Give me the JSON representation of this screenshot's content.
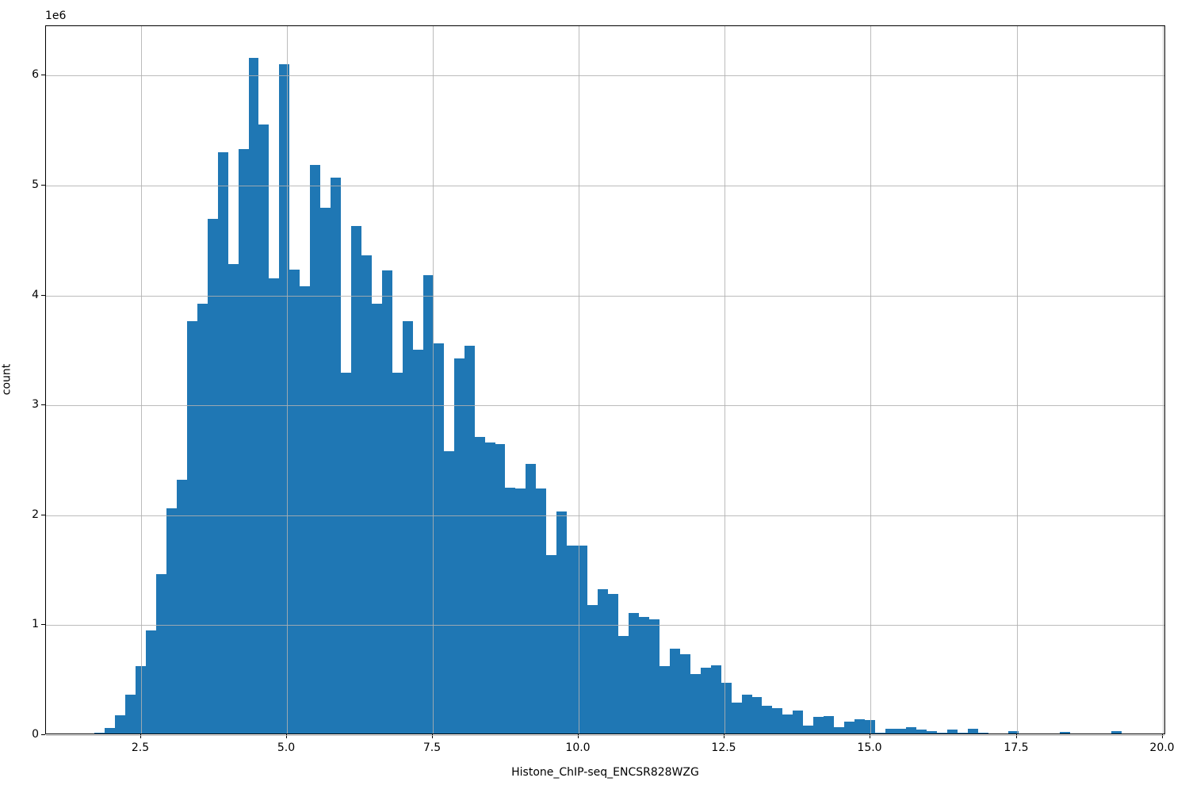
{
  "chart_data": {
    "type": "bar",
    "subtype": "histogram",
    "title": "",
    "xlabel": "Histone_ChIP-seq_ENCSR828WZG",
    "ylabel": "count",
    "y_offset_text": "1e6",
    "grid": true,
    "legend_position": "none",
    "bar_color": "#1f77b4",
    "grid_color": "#b0b0b0",
    "spine_color": "#000000",
    "text_color": "#000000",
    "xlim": [
      0.87,
      20.06
    ],
    "ylim": [
      0,
      6450000
    ],
    "xticks": {
      "values": [
        2.5,
        5.0,
        7.5,
        10.0,
        12.5,
        15.0,
        17.5,
        20.0
      ],
      "labels": [
        "2.5",
        "5.0",
        "7.5",
        "10.0",
        "12.5",
        "15.0",
        "17.5",
        "20.0"
      ]
    },
    "yticks": {
      "values": [
        0,
        1000000,
        2000000,
        3000000,
        4000000,
        5000000,
        6000000
      ],
      "labels": [
        "0",
        "1",
        "2",
        "3",
        "4",
        "5",
        "6"
      ]
    },
    "bins": {
      "start": 1.7,
      "width": 0.176,
      "count": 100
    },
    "counts": [
      10000,
      50000,
      165000,
      350000,
      610000,
      940000,
      1450000,
      2050000,
      2310000,
      3750000,
      3910000,
      4680000,
      5290000,
      4270000,
      5320000,
      6150000,
      5540000,
      4140000,
      6090000,
      4220000,
      4070000,
      5170000,
      4780000,
      5060000,
      3280000,
      4620000,
      4350000,
      3910000,
      4210000,
      3280000,
      3750000,
      3490000,
      4170000,
      3550000,
      2570000,
      3410000,
      3530000,
      2700000,
      2650000,
      2630000,
      2240000,
      2230000,
      2450000,
      2230000,
      1620000,
      2020000,
      1710000,
      1710000,
      1170000,
      1310000,
      1270000,
      890000,
      1100000,
      1060000,
      1040000,
      610000,
      770000,
      720000,
      540000,
      600000,
      620000,
      460000,
      280000,
      350000,
      330000,
      250000,
      230000,
      170000,
      210000,
      70000,
      150000,
      160000,
      55000,
      110000,
      130000,
      120000,
      10000,
      40000,
      40000,
      55000,
      35000,
      25000,
      10000,
      35000,
      5000,
      45000,
      5000,
      0,
      0,
      20000,
      0,
      0,
      0,
      0,
      15000,
      0,
      0,
      0,
      0,
      25000
    ]
  }
}
